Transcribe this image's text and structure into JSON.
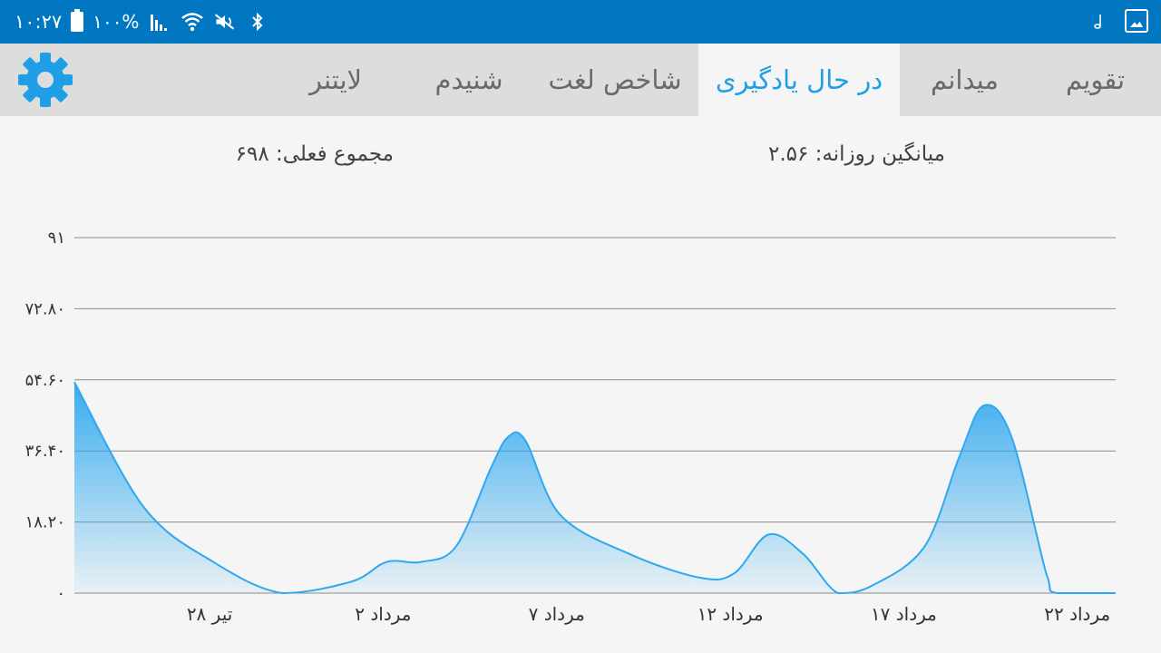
{
  "status_bar": {
    "time": "۱۰:۲۷",
    "battery": "۱۰۰%",
    "icons": [
      "battery-icon",
      "signal-icon",
      "wifi-icon",
      "mute-icon",
      "bluetooth-icon",
      "music-note-icon",
      "gallery-icon"
    ]
  },
  "tabs": [
    {
      "label": "تقویم",
      "active": false
    },
    {
      "label": "میدانم",
      "active": false
    },
    {
      "label": "در حال یادگیری",
      "active": true
    },
    {
      "label": "شاخص لغت",
      "active": false
    },
    {
      "label": "شنیدم",
      "active": false
    },
    {
      "label": "لایتنر",
      "active": false
    }
  ],
  "stats": {
    "daily_average": "میانگین روزانه: ۲.۵۶",
    "current_total": "مجموع فعلی: ۶۹۸"
  },
  "colors": {
    "status_bar": "#0177c1",
    "accent": "#1e9fe6",
    "tab_bar": "#dddddd",
    "line": "#2ea8ef"
  },
  "chart_data": {
    "type": "area",
    "y_tick_labels": [
      "۰",
      "۱۸.۲۰",
      "۳۶.۴۰",
      "۵۴.۶۰",
      "۷۲.۸۰",
      "۹۱"
    ],
    "y_ticks": [
      0,
      18.2,
      36.4,
      54.6,
      72.8,
      91
    ],
    "ylim": [
      0,
      91
    ],
    "x_tick_labels": [
      "۲۸ تیر",
      "۲ مرداد",
      "۷ مرداد",
      "۱۲ مرداد",
      "۱۷ مرداد",
      "۲۲ مرداد"
    ],
    "x_tick_days": [
      4,
      9,
      14,
      19,
      24,
      29
    ],
    "xlim": [
      0,
      30
    ],
    "grid": true,
    "series": [
      {
        "points": [
          {
            "x": 0,
            "y": 54
          },
          {
            "x": 2,
            "y": 22
          },
          {
            "x": 4,
            "y": 8
          },
          {
            "x": 6,
            "y": 0
          },
          {
            "x": 8,
            "y": 3
          },
          {
            "x": 9,
            "y": 8
          },
          {
            "x": 10,
            "y": 8
          },
          {
            "x": 11,
            "y": 12
          },
          {
            "x": 12,
            "y": 32
          },
          {
            "x": 12.5,
            "y": 40
          },
          {
            "x": 13,
            "y": 39
          },
          {
            "x": 14,
            "y": 20
          },
          {
            "x": 16,
            "y": 10
          },
          {
            "x": 18,
            "y": 4
          },
          {
            "x": 19,
            "y": 5
          },
          {
            "x": 20,
            "y": 15
          },
          {
            "x": 21,
            "y": 10
          },
          {
            "x": 22,
            "y": 0
          },
          {
            "x": 23,
            "y": 2
          },
          {
            "x": 24.5,
            "y": 12
          },
          {
            "x": 25.5,
            "y": 35
          },
          {
            "x": 26.2,
            "y": 48
          },
          {
            "x": 27,
            "y": 40
          },
          {
            "x": 28,
            "y": 5
          },
          {
            "x": 28.3,
            "y": 0
          },
          {
            "x": 30,
            "y": 0
          }
        ]
      }
    ]
  }
}
